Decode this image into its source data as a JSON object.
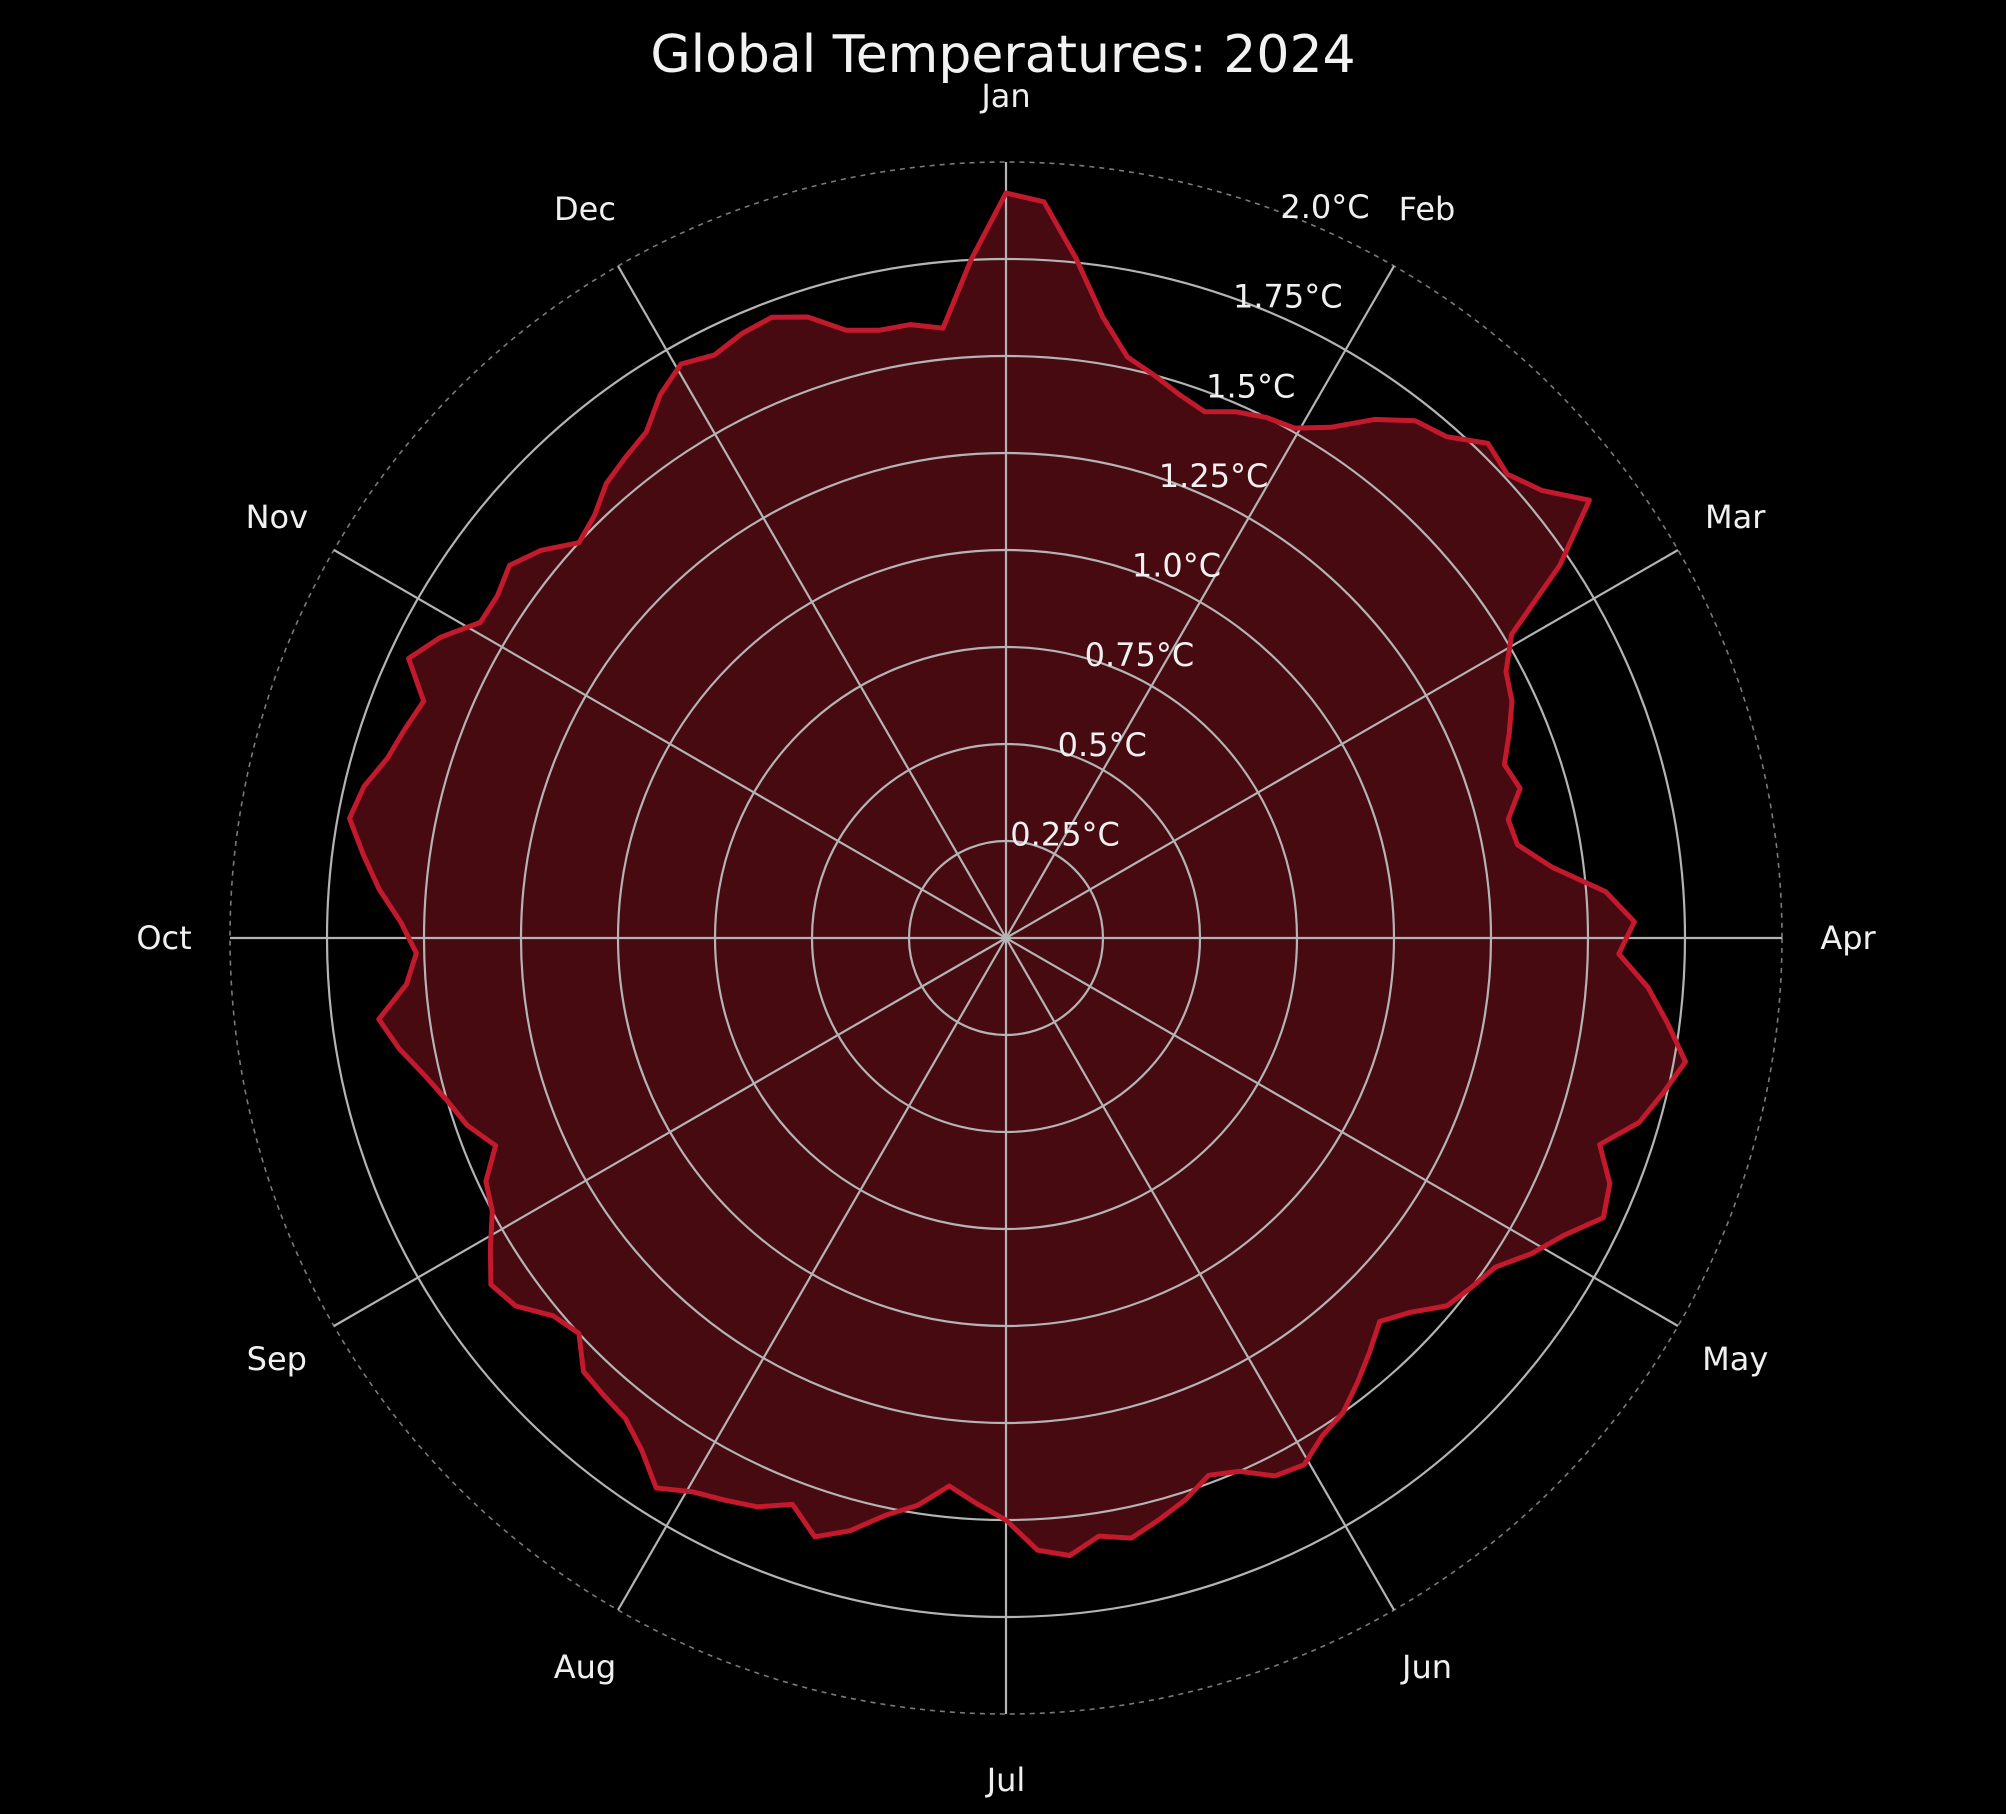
{
  "chart_data": {
    "type": "polar-line",
    "title": "Global Temperatures: 2024",
    "angular_labels": [
      "Jan",
      "Feb",
      "Mar",
      "Apr",
      "May",
      "Jun",
      "Jul",
      "Aug",
      "Sep",
      "Oct",
      "Nov",
      "Dec"
    ],
    "radial_ticks": [
      0.25,
      0.5,
      0.75,
      1.0,
      1.25,
      1.5,
      1.75,
      2.0
    ],
    "radial_tick_labels": [
      "0.25°C",
      "0.5°C",
      "0.75°C",
      "1.0°C",
      "1.25°C",
      "1.5°C",
      "1.75°C",
      "2.0°C"
    ],
    "rlim": [
      0,
      2.0
    ],
    "direction": "clockwise",
    "zero_location": "top",
    "grid": true,
    "series": [
      {
        "line_color": "#c21a2c",
        "fill_color": "#470a10",
        "day_of_year": [
          0,
          3,
          6,
          9,
          12,
          15,
          18,
          21,
          24,
          27,
          30,
          33,
          36,
          39,
          42,
          45,
          48,
          51,
          54,
          57,
          60,
          63,
          66,
          69,
          72,
          75,
          78,
          81,
          84,
          87,
          90,
          93,
          96,
          99,
          102,
          105,
          108,
          111,
          114,
          117,
          120,
          123,
          126,
          129,
          132,
          135,
          138,
          141,
          144,
          147,
          150,
          153,
          156,
          159,
          162,
          165,
          168,
          171,
          174,
          177,
          180,
          183,
          186,
          189,
          192,
          195,
          198,
          201,
          204,
          207,
          210,
          213,
          216,
          219,
          222,
          225,
          228,
          231,
          234,
          237,
          240,
          243,
          246,
          249,
          252,
          255,
          258,
          261,
          264,
          267,
          270,
          273,
          276,
          279,
          282,
          285,
          288,
          291,
          294,
          297,
          300,
          303,
          306,
          309,
          312,
          315,
          318,
          321,
          324,
          327,
          330,
          333,
          336,
          339,
          342,
          345,
          348,
          351,
          354,
          357,
          360,
          363
        ],
        "anomaly_c": [
          1.92,
          1.9,
          1.76,
          1.62,
          1.53,
          1.5,
          1.47,
          1.45,
          1.48,
          1.5,
          1.51,
          1.56,
          1.64,
          1.7,
          1.72,
          1.78,
          1.76,
          1.8,
          1.88,
          1.72,
          1.52,
          1.46,
          1.44,
          1.4,
          1.36,
          1.38,
          1.33,
          1.34,
          1.42,
          1.55,
          1.62,
          1.58,
          1.66,
          1.72,
          1.78,
          1.74,
          1.7,
          1.62,
          1.68,
          1.7,
          1.63,
          1.58,
          1.52,
          1.5,
          1.48,
          1.42,
          1.38,
          1.42,
          1.46,
          1.5,
          1.52,
          1.56,
          1.55,
          1.5,
          1.48,
          1.52,
          1.55,
          1.58,
          1.56,
          1.6,
          1.58,
          1.5,
          1.46,
          1.42,
          1.48,
          1.52,
          1.58,
          1.62,
          1.56,
          1.6,
          1.62,
          1.64,
          1.68,
          1.62,
          1.58,
          1.57,
          1.56,
          1.5,
          1.52,
          1.58,
          1.6,
          1.55,
          1.5,
          1.48,
          1.42,
          1.47,
          1.5,
          1.54,
          1.59,
          1.63,
          1.55,
          1.52,
          1.56,
          1.62,
          1.67,
          1.72,
          1.7,
          1.66,
          1.64,
          1.62,
          1.7,
          1.65,
          1.58,
          1.58,
          1.6,
          1.56,
          1.5,
          1.52,
          1.56,
          1.58,
          1.6,
          1.66,
          1.7,
          1.68,
          1.7,
          1.71,
          1.68,
          1.62,
          1.6,
          1.6,
          1.58,
          1.75
        ]
      }
    ]
  }
}
